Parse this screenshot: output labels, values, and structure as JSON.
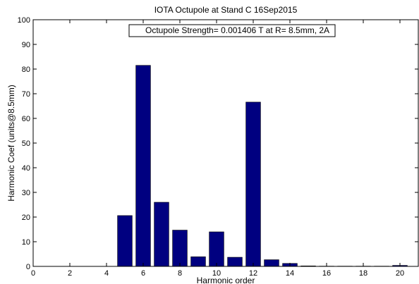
{
  "chart_data": {
    "type": "bar",
    "title": "IOTA Octupole at Stand C 16Sep2015",
    "xlabel": "Harmonic order",
    "ylabel": "Harmonic Coef (units@8.5mm)",
    "annotation": "Octupole Strength= 0.001406 T at R= 8.5mm, 2A",
    "xlim": [
      0,
      21
    ],
    "ylim": [
      0,
      100
    ],
    "xticks": [
      0,
      2,
      4,
      6,
      8,
      10,
      12,
      14,
      16,
      18,
      20
    ],
    "yticks": [
      0,
      10,
      20,
      30,
      40,
      50,
      60,
      70,
      80,
      90,
      100
    ],
    "x": [
      5,
      6,
      7,
      8,
      9,
      10,
      11,
      12,
      13,
      14,
      15,
      16,
      17,
      18,
      19,
      20
    ],
    "values": [
      20.6,
      81.5,
      26.0,
      14.7,
      3.9,
      14.0,
      3.7,
      66.6,
      2.7,
      1.2,
      0.2,
      0.1,
      0.1,
      0.1,
      0.1,
      0.4
    ],
    "bar_color": "#000080",
    "grid": false
  }
}
